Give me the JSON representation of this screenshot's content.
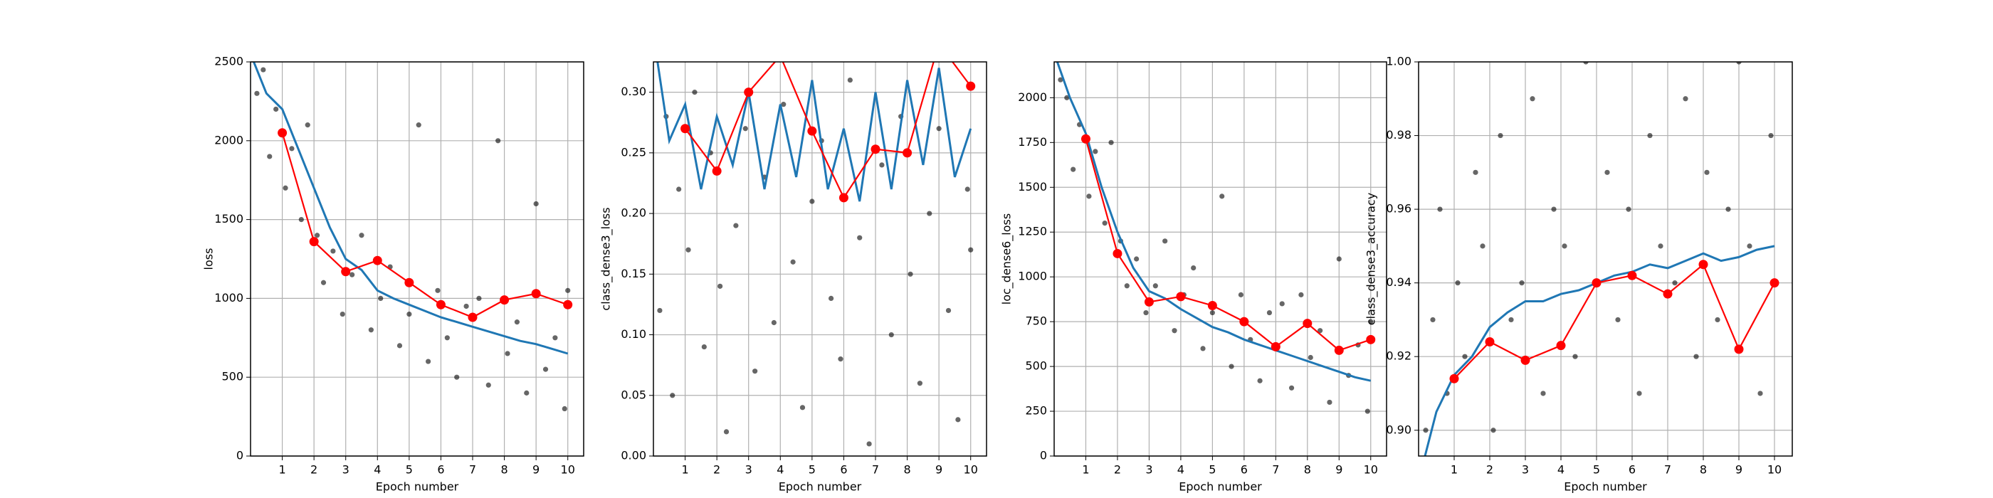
{
  "chart_data": [
    {
      "type": "line",
      "x_label": "Epoch number",
      "y_label": "loss",
      "xlim": [
        0,
        10.5
      ],
      "ylim": [
        0,
        2500
      ],
      "xticks": [
        1,
        2,
        3,
        4,
        5,
        6,
        7,
        8,
        9,
        10
      ],
      "yticks": [
        0,
        500,
        1000,
        1500,
        2000,
        2500
      ],
      "grid": true,
      "series": [
        {
          "marker": "scatter",
          "color": "#000000",
          "x": [
            0.2,
            0.4,
            0.6,
            0.8,
            1.1,
            1.3,
            1.6,
            1.8,
            2.1,
            2.3,
            2.6,
            2.9,
            3.2,
            3.5,
            3.8,
            4.1,
            4.4,
            4.7,
            5.0,
            5.3,
            5.6,
            5.9,
            6.2,
            6.5,
            6.8,
            7.2,
            7.5,
            7.8,
            8.1,
            8.4,
            8.7,
            9.0,
            9.3,
            9.6,
            9.9,
            10.0
          ],
          "values": [
            2300,
            2450,
            1900,
            2200,
            1700,
            1950,
            1500,
            2100,
            1400,
            1100,
            1300,
            900,
            1150,
            1400,
            800,
            1000,
            1200,
            700,
            900,
            2100,
            600,
            1050,
            750,
            500,
            950,
            1000,
            450,
            2000,
            650,
            850,
            400,
            1600,
            550,
            750,
            300,
            1050
          ]
        },
        {
          "marker": "line",
          "color": "#1f77b4",
          "x": [
            0.1,
            0.5,
            1,
            1.5,
            2,
            2.5,
            3,
            3.5,
            4,
            4.5,
            5,
            5.5,
            6,
            6.5,
            7,
            7.5,
            8,
            8.5,
            9,
            9.5,
            10
          ],
          "values": [
            2500,
            2300,
            2200,
            1950,
            1700,
            1450,
            1250,
            1180,
            1050,
            1000,
            960,
            920,
            880,
            850,
            820,
            790,
            760,
            730,
            710,
            680,
            650
          ]
        },
        {
          "marker": "dots",
          "color": "#ff0000",
          "x": [
            1,
            2,
            3,
            4,
            5,
            6,
            7,
            8,
            9,
            10
          ],
          "values": [
            2050,
            1360,
            1170,
            1240,
            1100,
            960,
            880,
            990,
            1030,
            960
          ]
        }
      ]
    },
    {
      "type": "line",
      "x_label": "Epoch number",
      "y_label": "class_dense3_loss",
      "xlim": [
        0,
        10.5
      ],
      "ylim": [
        0,
        0.325
      ],
      "xticks": [
        1,
        2,
        3,
        4,
        5,
        6,
        7,
        8,
        9,
        10
      ],
      "yticks": [
        {
          "value": 0,
          "label": "0.00"
        },
        {
          "value": 0.05,
          "label": "0.05"
        },
        {
          "value": 0.1,
          "label": "0.10"
        },
        {
          "value": 0.15,
          "label": "0.15"
        },
        {
          "value": 0.2,
          "label": "0.20"
        },
        {
          "value": 0.25,
          "label": "0.25"
        },
        {
          "value": 0.3,
          "label": "0.30"
        }
      ],
      "grid": true,
      "series": [
        {
          "marker": "scatter",
          "color": "#000000",
          "x": [
            0.2,
            0.4,
            0.6,
            0.8,
            1.1,
            1.3,
            1.6,
            1.8,
            2.1,
            2.3,
            2.6,
            2.9,
            3.2,
            3.5,
            3.8,
            4.1,
            4.4,
            4.7,
            5.0,
            5.3,
            5.6,
            5.9,
            6.2,
            6.5,
            6.8,
            7.2,
            7.5,
            7.8,
            8.1,
            8.4,
            8.7,
            9.0,
            9.3,
            9.6,
            9.9,
            10.0
          ],
          "values": [
            0.12,
            0.28,
            0.05,
            0.22,
            0.17,
            0.3,
            0.09,
            0.25,
            0.14,
            0.02,
            0.19,
            0.27,
            0.07,
            0.23,
            0.11,
            0.29,
            0.16,
            0.04,
            0.21,
            0.26,
            0.13,
            0.08,
            0.31,
            0.18,
            0.01,
            0.24,
            0.1,
            0.28,
            0.15,
            0.06,
            0.2,
            0.27,
            0.12,
            0.03,
            0.22,
            0.17
          ]
        },
        {
          "marker": "line",
          "color": "#1f77b4",
          "x": [
            0.1,
            0.5,
            1,
            1.5,
            2,
            2.5,
            3,
            3.5,
            4,
            4.5,
            5,
            5.5,
            6,
            6.5,
            7,
            7.5,
            8,
            8.5,
            9,
            9.5,
            10
          ],
          "values": [
            0.33,
            0.26,
            0.29,
            0.22,
            0.28,
            0.24,
            0.3,
            0.22,
            0.29,
            0.23,
            0.31,
            0.22,
            0.27,
            0.21,
            0.3,
            0.22,
            0.31,
            0.24,
            0.32,
            0.23,
            0.27
          ]
        },
        {
          "marker": "dots",
          "color": "#ff0000",
          "x": [
            1,
            2,
            3,
            4,
            5,
            6,
            7,
            8,
            9,
            10
          ],
          "values": [
            0.27,
            0.235,
            0.3,
            0.33,
            0.268,
            0.213,
            0.253,
            0.25,
            0.34,
            0.305
          ]
        }
      ]
    },
    {
      "type": "line",
      "x_label": "Epoch number",
      "y_label": "loc_dense6_loss",
      "xlim": [
        0,
        10.5
      ],
      "ylim": [
        0,
        2200
      ],
      "xticks": [
        1,
        2,
        3,
        4,
        5,
        6,
        7,
        8,
        9,
        10
      ],
      "yticks": [
        0,
        250,
        500,
        750,
        1000,
        1250,
        1500,
        1750,
        2000
      ],
      "grid": true,
      "series": [
        {
          "marker": "scatter",
          "color": "#000000",
          "x": [
            0.2,
            0.4,
            0.6,
            0.8,
            1.1,
            1.3,
            1.6,
            1.8,
            2.1,
            2.3,
            2.6,
            2.9,
            3.2,
            3.5,
            3.8,
            4.1,
            4.4,
            4.7,
            5.0,
            5.3,
            5.6,
            5.9,
            6.2,
            6.5,
            6.8,
            7.2,
            7.5,
            7.8,
            8.1,
            8.4,
            8.7,
            9.0,
            9.3,
            9.6,
            9.9,
            10.0
          ],
          "values": [
            2100,
            2000,
            1600,
            1850,
            1450,
            1700,
            1300,
            1750,
            1200,
            950,
            1100,
            800,
            950,
            1200,
            700,
            900,
            1050,
            600,
            800,
            1450,
            500,
            900,
            650,
            420,
            800,
            850,
            380,
            900,
            550,
            700,
            300,
            1100,
            450,
            620,
            250,
            750
          ]
        },
        {
          "marker": "line",
          "color": "#1f77b4",
          "x": [
            0.1,
            0.5,
            1,
            1.5,
            2,
            2.5,
            3,
            3.5,
            4,
            4.5,
            5,
            5.5,
            6,
            6.5,
            7,
            7.5,
            8,
            8.5,
            9,
            9.5,
            10
          ],
          "values": [
            2200,
            2000,
            1800,
            1500,
            1250,
            1050,
            920,
            880,
            820,
            770,
            720,
            690,
            650,
            620,
            590,
            560,
            530,
            500,
            470,
            440,
            420
          ]
        },
        {
          "marker": "dots",
          "color": "#ff0000",
          "x": [
            1,
            2,
            3,
            4,
            5,
            6,
            7,
            8,
            9,
            10
          ],
          "values": [
            1770,
            1130,
            860,
            890,
            840,
            750,
            610,
            740,
            590,
            650
          ]
        }
      ]
    },
    {
      "type": "line",
      "x_label": "Epoch number",
      "y_label": "class_dense3_accuracy",
      "xlim": [
        0,
        10.5
      ],
      "ylim": [
        0.893,
        1.0
      ],
      "xticks": [
        1,
        2,
        3,
        4,
        5,
        6,
        7,
        8,
        9,
        10
      ],
      "yticks": [
        {
          "value": 0.9,
          "label": "0.90"
        },
        {
          "value": 0.92,
          "label": "0.92"
        },
        {
          "value": 0.94,
          "label": "0.94"
        },
        {
          "value": 0.96,
          "label": "0.96"
        },
        {
          "value": 0.98,
          "label": "0.98"
        },
        {
          "value": 1.0,
          "label": "1.00"
        }
      ],
      "grid": true,
      "series": [
        {
          "marker": "scatter",
          "color": "#000000",
          "x": [
            0.2,
            0.4,
            0.6,
            0.8,
            1.1,
            1.3,
            1.6,
            1.8,
            2.1,
            2.3,
            2.6,
            2.9,
            3.2,
            3.5,
            3.8,
            4.1,
            4.4,
            4.7,
            5.0,
            5.3,
            5.6,
            5.9,
            6.2,
            6.5,
            6.8,
            7.2,
            7.5,
            7.8,
            8.1,
            8.4,
            8.7,
            9.0,
            9.3,
            9.6,
            9.9,
            10.0
          ],
          "values": [
            0.9,
            0.93,
            0.96,
            0.91,
            0.94,
            0.92,
            0.97,
            0.95,
            0.9,
            0.98,
            0.93,
            0.94,
            0.99,
            0.91,
            0.96,
            0.95,
            0.92,
            1.0,
            0.94,
            0.97,
            0.93,
            0.96,
            0.91,
            0.98,
            0.95,
            0.94,
            0.99,
            0.92,
            0.97,
            0.93,
            0.96,
            1.0,
            0.95,
            0.91,
            0.98,
            0.94
          ]
        },
        {
          "marker": "line",
          "color": "#1f77b4",
          "x": [
            0.1,
            0.5,
            1,
            1.5,
            2,
            2.5,
            3,
            3.5,
            4,
            4.5,
            5,
            5.5,
            6,
            6.5,
            7,
            7.5,
            8,
            8.5,
            9,
            9.5,
            10
          ],
          "values": [
            0.89,
            0.905,
            0.915,
            0.92,
            0.928,
            0.932,
            0.935,
            0.935,
            0.937,
            0.938,
            0.94,
            0.942,
            0.943,
            0.945,
            0.944,
            0.946,
            0.948,
            0.946,
            0.947,
            0.949,
            0.95
          ]
        },
        {
          "marker": "dots",
          "color": "#ff0000",
          "x": [
            1,
            2,
            3,
            4,
            5,
            6,
            7,
            8,
            9,
            10
          ],
          "values": [
            0.914,
            0.924,
            0.919,
            0.923,
            0.94,
            0.942,
            0.937,
            0.945,
            0.922,
            0.94
          ]
        }
      ]
    }
  ]
}
